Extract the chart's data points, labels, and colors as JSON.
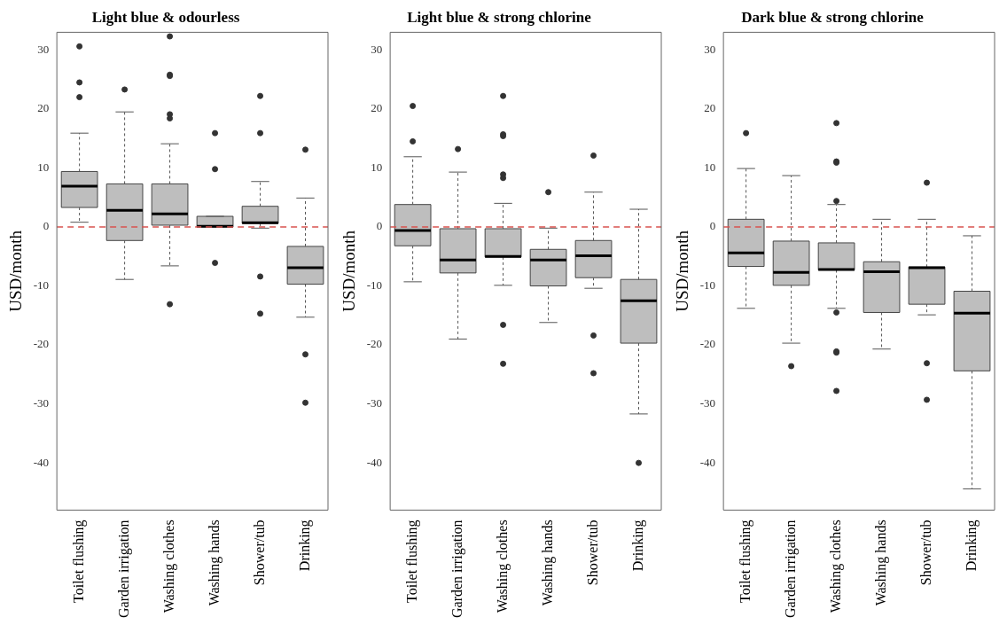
{
  "chart_data": [
    {
      "type": "box",
      "title": "Light blue & odourless",
      "ylabel": "USD/month",
      "color": "#bebebe",
      "categories": [
        "Toilet flushing",
        "Garden irrigation",
        "Washing clothes",
        "Washing hands",
        "Shower/tub",
        "Drinking"
      ],
      "boxes": [
        {
          "low": 0.8,
          "q1": 3.3,
          "median": 6.9,
          "q3": 9.4,
          "high": 15.9,
          "outliers": [
            30.6,
            24.5,
            22
          ]
        },
        {
          "low": -8.9,
          "q1": -2.3,
          "median": 2.8,
          "q3": 7.3,
          "high": 19.5,
          "outliers": [
            23.3
          ]
        },
        {
          "low": -6.6,
          "q1": 0.3,
          "median": 2.2,
          "q3": 7.3,
          "high": 14.1,
          "outliers": [
            32.3,
            25.8,
            25.6,
            19.1,
            18.4,
            -13.1
          ]
        },
        {
          "low": 0,
          "q1": 0,
          "median": 0.1,
          "q3": 1.8,
          "high": 1.8,
          "outliers": [
            15.9,
            9.8,
            -6.1
          ]
        },
        {
          "low": -0.2,
          "q1": 0.6,
          "median": 0.7,
          "q3": 3.5,
          "high": 7.7,
          "outliers": [
            22.2,
            15.9,
            -8.4,
            -14.7
          ]
        },
        {
          "low": -15.3,
          "q1": -9.7,
          "median": -6.9,
          "q3": -3.3,
          "high": 4.9,
          "outliers": [
            13.1,
            -21.6,
            -29.8
          ]
        }
      ],
      "ylim": [
        -48,
        33
      ],
      "yticks": [
        -40,
        -30,
        -20,
        -10,
        0,
        10,
        20,
        30
      ],
      "ref_lines": [
        {
          "axis": "y",
          "value": 0,
          "color": "#d9534f",
          "line_style": "dashed"
        }
      ],
      "grid": false,
      "legend": false
    },
    {
      "type": "box",
      "title": "Light blue & strong chlorine",
      "ylabel": "USD/month",
      "color": "#bebebe",
      "categories": [
        "Toilet flushing",
        "Garden irrigation",
        "Washing clothes",
        "Washing hands",
        "Shower/tub",
        "Drinking"
      ],
      "boxes": [
        {
          "low": -9.3,
          "q1": -3.2,
          "median": -0.6,
          "q3": 3.8,
          "high": 11.9,
          "outliers": [
            20.5,
            14.5
          ]
        },
        {
          "low": -19,
          "q1": -7.8,
          "median": -5.6,
          "q3": -0.3,
          "high": 9.3,
          "outliers": [
            13.2
          ]
        },
        {
          "low": -9.9,
          "q1": -5.1,
          "median": -5,
          "q3": -0.3,
          "high": 4,
          "outliers": [
            22.2,
            15.7,
            15.4,
            8.9,
            8.3,
            -16.6,
            -23.2
          ]
        },
        {
          "low": -16.2,
          "q1": -10,
          "median": -5.6,
          "q3": -3.8,
          "high": -0.2,
          "outliers": [
            5.9
          ]
        },
        {
          "low": -10.4,
          "q1": -8.6,
          "median": -4.9,
          "q3": -2.3,
          "high": 5.9,
          "outliers": [
            12.1,
            -18.4,
            -24.8
          ]
        },
        {
          "low": -31.7,
          "q1": -19.7,
          "median": -12.5,
          "q3": -8.9,
          "high": 3,
          "outliers": [
            -40
          ]
        }
      ],
      "ylim": [
        -48,
        33
      ],
      "yticks": [
        -40,
        -30,
        -20,
        -10,
        0,
        10,
        20,
        30
      ],
      "ref_lines": [
        {
          "axis": "y",
          "value": 0,
          "color": "#d9534f",
          "line_style": "dashed"
        }
      ],
      "grid": false,
      "legend": false
    },
    {
      "type": "box",
      "title": "Dark blue & strong chlorine",
      "ylabel": "USD/month",
      "color": "#bebebe",
      "categories": [
        "Toilet flushing",
        "Garden irrigation",
        "Washing clothes",
        "Washing hands",
        "Shower/tub",
        "Drinking"
      ],
      "boxes": [
        {
          "low": -13.8,
          "q1": -6.7,
          "median": -4.4,
          "q3": 1.3,
          "high": 9.9,
          "outliers": [
            15.9
          ]
        },
        {
          "low": -19.7,
          "q1": -9.9,
          "median": -7.7,
          "q3": -2.4,
          "high": 8.7,
          "outliers": [
            -23.6
          ]
        },
        {
          "low": -13.8,
          "q1": -7.3,
          "median": -7.2,
          "q3": -2.7,
          "high": 3.8,
          "outliers": [
            17.6,
            11.1,
            10.9,
            4.4,
            -14.5,
            -21.1,
            -21.3,
            -27.8
          ]
        },
        {
          "low": -20.7,
          "q1": -14.5,
          "median": -7.6,
          "q3": -5.9,
          "high": 1.3
        },
        {
          "low": -14.9,
          "q1": -13.1,
          "median": -6.9,
          "q3": -6.8,
          "high": 1.3,
          "outliers": [
            7.5,
            -23.1,
            -29.3
          ]
        },
        {
          "low": -44.4,
          "q1": -24.4,
          "median": -14.6,
          "q3": -10.9,
          "high": -1.5
        }
      ],
      "ylim": [
        -48,
        33
      ],
      "yticks": [
        -40,
        -30,
        -20,
        -10,
        0,
        10,
        20,
        30
      ],
      "ref_lines": [
        {
          "axis": "y",
          "value": 0,
          "color": "#d9534f",
          "line_style": "dashed"
        }
      ],
      "grid": false,
      "legend": false
    }
  ]
}
